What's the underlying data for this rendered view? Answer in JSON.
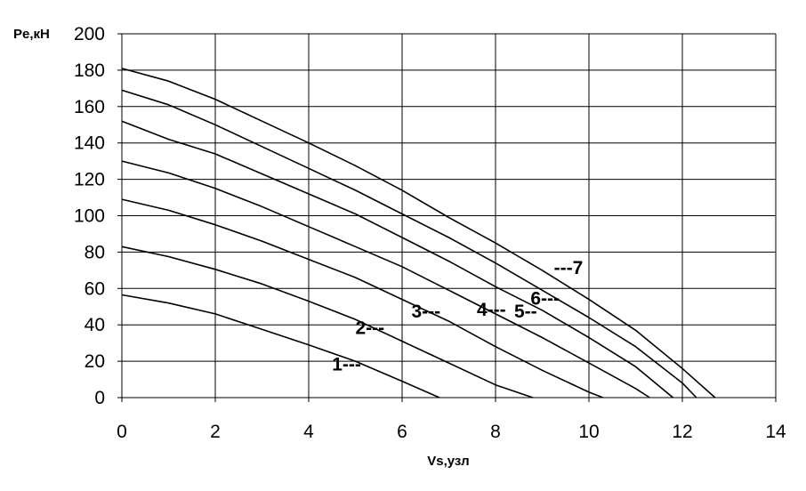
{
  "chart_data": {
    "type": "line",
    "title": "",
    "xlabel": "Vs,узл",
    "ylabel": "Pe,кН",
    "xlim": [
      0,
      14
    ],
    "ylim": [
      0,
      200
    ],
    "xticks": [
      0,
      2,
      4,
      6,
      8,
      10,
      12,
      14
    ],
    "yticks": [
      0,
      20,
      40,
      60,
      80,
      100,
      120,
      140,
      160,
      180,
      200
    ],
    "grid": true,
    "legend": "none",
    "series": [
      {
        "name": "1",
        "label_text": "1---",
        "label_at": [
          4.5,
          15
        ],
        "x": [
          0,
          1,
          2,
          3,
          4,
          5,
          6,
          6.8
        ],
        "y": [
          56.5,
          52,
          46,
          37.5,
          29,
          20,
          9,
          0
        ]
      },
      {
        "name": "2",
        "label_text": "2---",
        "label_at": [
          5.0,
          35
        ],
        "x": [
          0,
          1,
          2,
          3,
          4,
          5,
          6,
          7,
          8,
          8.8
        ],
        "y": [
          83,
          77.5,
          70.5,
          62.5,
          53,
          43,
          31,
          19,
          7,
          0
        ]
      },
      {
        "name": "3",
        "label_text": "3---",
        "label_at": [
          6.2,
          44
        ],
        "x": [
          0,
          1,
          2,
          3,
          4,
          5,
          6,
          7,
          8,
          9,
          10,
          10.3
        ],
        "y": [
          109,
          103,
          95,
          86,
          76,
          66,
          54,
          42,
          28,
          15,
          3,
          0
        ]
      },
      {
        "name": "4",
        "label_text": "4---",
        "label_at": [
          7.6,
          45
        ],
        "x": [
          0,
          1,
          2,
          3,
          4,
          5,
          6,
          7,
          8,
          9,
          10,
          11,
          11.3
        ],
        "y": [
          130,
          123.5,
          115,
          105,
          94,
          83,
          72,
          59,
          46,
          33,
          19,
          5,
          0
        ]
      },
      {
        "name": "5",
        "label_text": "5--",
        "label_at": [
          8.4,
          44
        ],
        "x": [
          0,
          1,
          2,
          3,
          4,
          5,
          6,
          7,
          8,
          9,
          10,
          11,
          11.8
        ],
        "y": [
          152,
          142,
          134,
          123,
          112,
          101,
          88,
          75,
          61,
          48,
          33,
          17,
          0
        ]
      },
      {
        "name": "6",
        "label_text": "6---",
        "label_at": [
          8.75,
          51
        ],
        "x": [
          0,
          1,
          2,
          3,
          4,
          5,
          6,
          7,
          8,
          9,
          10,
          11,
          12,
          12.3
        ],
        "y": [
          169,
          161,
          150,
          138,
          126,
          114,
          101,
          88,
          74,
          59,
          44,
          28,
          8,
          0
        ]
      },
      {
        "name": "7",
        "label_text": "---7",
        "label_at": [
          9.25,
          68
        ],
        "x": [
          0,
          1,
          2,
          3,
          4,
          5,
          6,
          7,
          8,
          9,
          10,
          11,
          12,
          12.7
        ],
        "y": [
          181,
          174,
          164,
          152,
          140,
          127.5,
          114,
          99,
          85,
          70,
          54,
          37,
          16,
          0
        ]
      }
    ]
  }
}
